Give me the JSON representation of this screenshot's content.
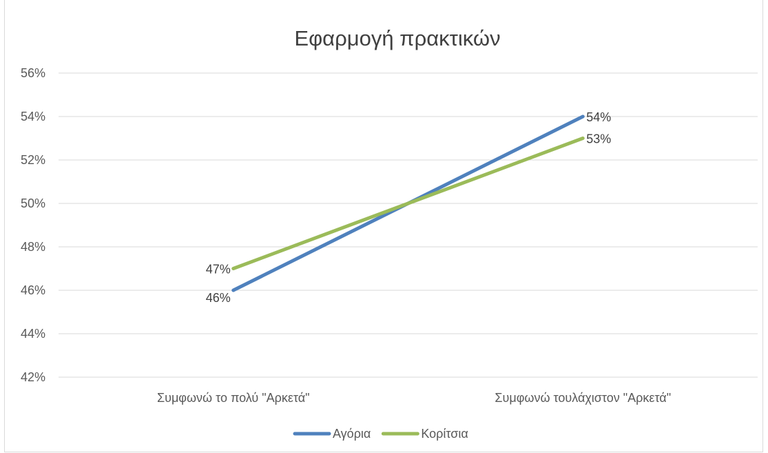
{
  "chart_data": {
    "type": "line",
    "title": "Εφαρμογή πρακτικών",
    "xlabel": "",
    "ylabel": "",
    "categories": [
      "Συμφωνώ το πολύ \"Αρκετά\"",
      "Συμφωνώ τουλάχιστον \"Αρκετά\""
    ],
    "series": [
      {
        "name": "Αγόρια",
        "values": [
          46,
          54
        ],
        "labels": [
          "46%",
          "54%"
        ],
        "color": "#4f81bd"
      },
      {
        "name": "Κορίτσια",
        "values": [
          47,
          53
        ],
        "labels": [
          "47%",
          "53%"
        ],
        "color": "#9bbb59"
      }
    ],
    "ylim": [
      42,
      56
    ],
    "yticks": [
      "42%",
      "44%",
      "46%",
      "48%",
      "50%",
      "52%",
      "54%",
      "56%"
    ],
    "grid": true,
    "gridColor": "#d9d9d9",
    "legend": "bottom"
  }
}
